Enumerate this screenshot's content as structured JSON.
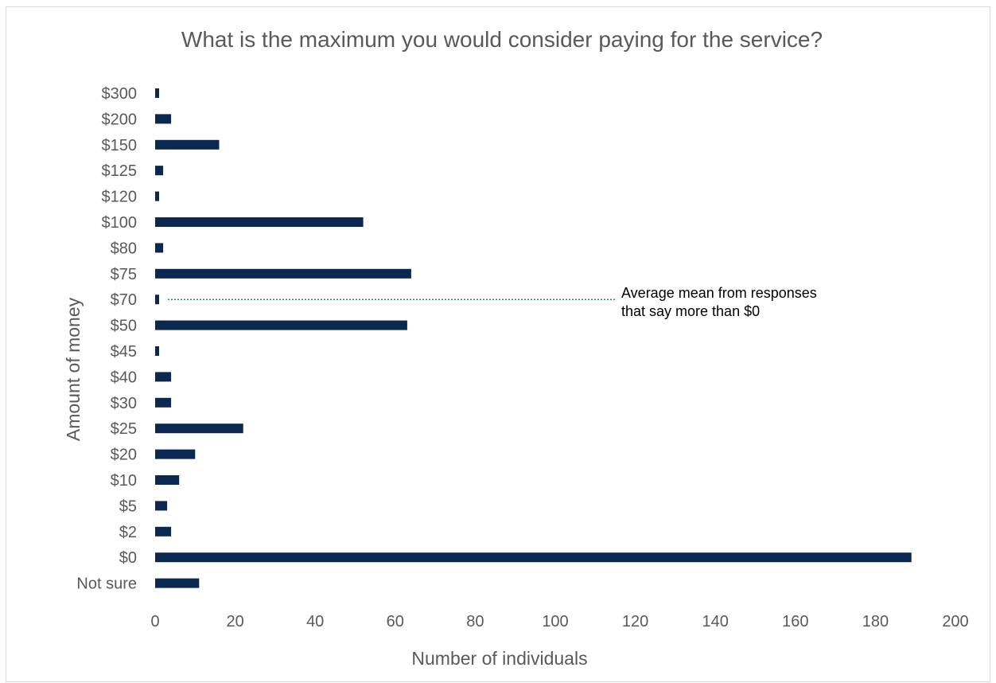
{
  "chart_data": {
    "type": "bar",
    "orientation": "horizontal",
    "title": "What is the maximum you would consider paying for the service?",
    "xlabel": "Number of individuals",
    "ylabel": "Amount of money",
    "categories": [
      "$300",
      "$200",
      "$150",
      "$125",
      "$120",
      "$100",
      "$80",
      "$75",
      "$70",
      "$50",
      "$45",
      "$40",
      "$30",
      "$25",
      "$20",
      "$10",
      "$5",
      "$2",
      "$0",
      "Not sure"
    ],
    "values": [
      1,
      4,
      16,
      2,
      1,
      52,
      2,
      64,
      1,
      63,
      1,
      4,
      4,
      22,
      10,
      6,
      3,
      4,
      189,
      11
    ],
    "xlim": [
      0,
      200
    ],
    "xticks": [
      0,
      20,
      40,
      60,
      80,
      100,
      120,
      140,
      160,
      180,
      200
    ],
    "grid": false,
    "bar_color": "#0b2850",
    "annotation": {
      "line1": "Average mean from responses",
      "line2": "that say more than $0",
      "category": "$70",
      "line_color": "#2e75b6"
    }
  }
}
